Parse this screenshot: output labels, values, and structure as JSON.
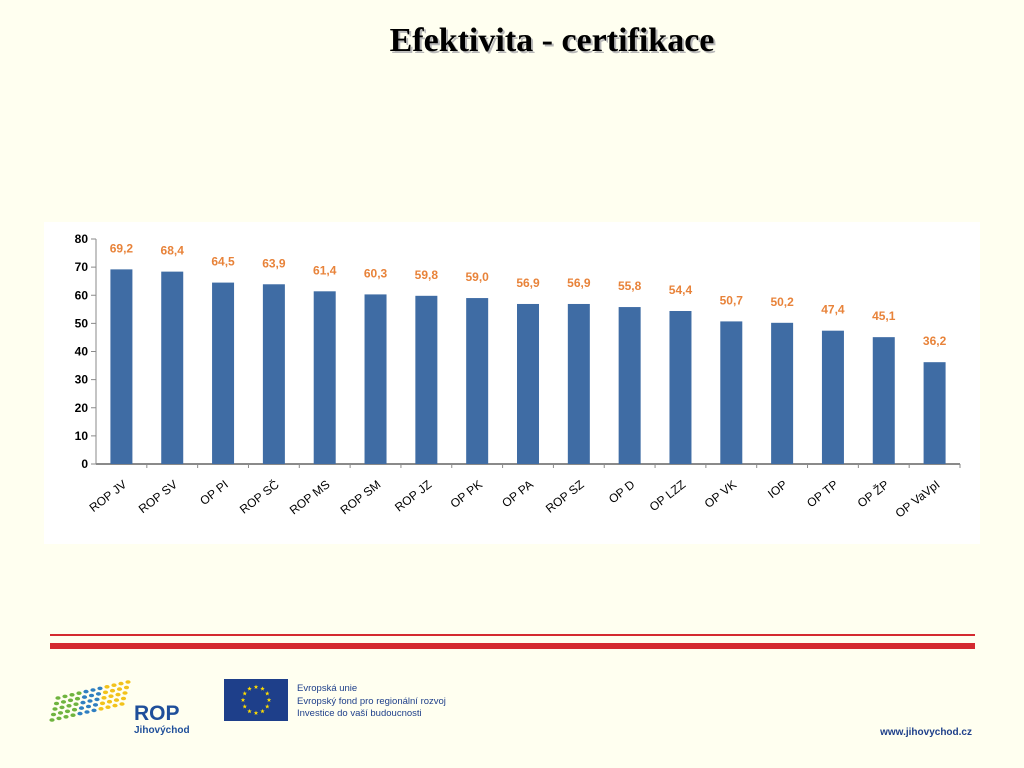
{
  "slide": {
    "title": "Efektivita - certifikace"
  },
  "chart_data": {
    "type": "bar",
    "categories": [
      "ROP JV",
      "ROP SV",
      "OP PI",
      "ROP SČ",
      "ROP MS",
      "ROP SM",
      "ROP JZ",
      "OP PK",
      "OP PA",
      "ROP SZ",
      "OP D",
      "OP LZZ",
      "OP VK",
      "IOP",
      "OP TP",
      "OP ŽP",
      "OP VaVpI"
    ],
    "values": [
      69.2,
      68.4,
      64.5,
      63.9,
      61.4,
      60.3,
      59.8,
      59.0,
      56.9,
      56.9,
      55.8,
      54.4,
      50.7,
      50.2,
      47.4,
      45.1,
      36.2
    ],
    "value_labels": [
      "69,2",
      "68,4",
      "64,5",
      "63,9",
      "61,4",
      "60,3",
      "59,8",
      "59,0",
      "56,9",
      "56,9",
      "55,8",
      "54,4",
      "50,7",
      "50,2",
      "47,4",
      "45,1",
      "36,2"
    ],
    "y_ticks": [
      "0",
      "10",
      "20",
      "30",
      "40",
      "50",
      "60",
      "70",
      "80"
    ],
    "ylim": [
      0,
      80
    ],
    "grid": false,
    "legend": "none",
    "bar_color": "#3f6ca4",
    "label_color": "#e8833a"
  },
  "footer": {
    "rop_name": "ROP",
    "rop_region": "Jihovýchod",
    "eu_lines": [
      "Evropská unie",
      "Evropský fond pro regionální rozvoj",
      "Investice do vaší budoucnosti"
    ],
    "website": "www.jihovychod.cz",
    "rule_color": "#d42a30",
    "eu_blue": "#1e3f8a",
    "eu_star": "#ffdd00"
  }
}
